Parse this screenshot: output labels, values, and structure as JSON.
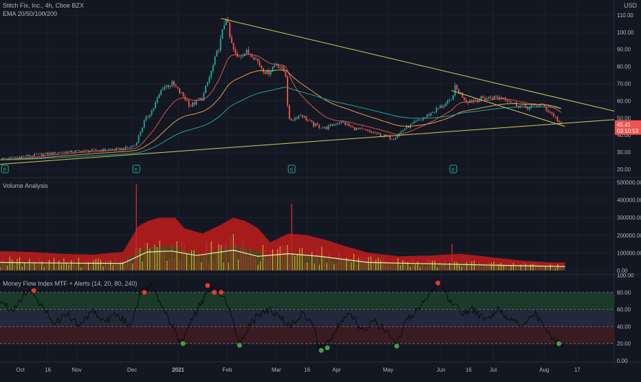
{
  "header": {
    "symbol_line": "Stitch Fix, Inc., 4h, Cboe BZX",
    "ema_label": "EMA 20/50/100/200",
    "currency": "USD"
  },
  "colors": {
    "background": "#131722",
    "grid": "#1e222d",
    "up_candle": "#26a69a",
    "down_candle": "#ef5350",
    "ema20": "#e0534a",
    "ema50": "#e8a04a",
    "ema100": "#26a69a",
    "trendline": "#d4cf5a",
    "volume_fill": "#b71c1c",
    "volume_ma": "#f0f0c0",
    "mfi_line": "#0a0a0a",
    "mfi_overbought_zone": "#1b3a2a",
    "mfi_oversold_zone": "#3a1b22",
    "mfi_middle_zone": "#23283a",
    "alert_high": "#e53935",
    "alert_low": "#43a047",
    "earnings_marker": "#26a69a"
  },
  "chart_data": [
    {
      "type": "candlestick",
      "title": "Stitch Fix, Inc., 4h, Cboe BZX",
      "indicators": [
        "EMA 20",
        "EMA 50",
        "EMA 100",
        "EMA 200"
      ],
      "x_ticks": [
        "Oct",
        "16",
        "Nov",
        "Dec",
        "2021",
        "Feb",
        "Mar",
        "16",
        "Apr",
        "May",
        "Jun",
        "16",
        "Jul",
        "Aug",
        "17"
      ],
      "y_ticks": [
        20,
        30,
        40,
        50,
        60,
        70,
        80,
        90,
        100,
        110
      ],
      "ylim": [
        16,
        118
      ],
      "last_price": "45.41",
      "countdown": "03:10:53",
      "price_path": [
        [
          0,
          26
        ],
        [
          0.05,
          28
        ],
        [
          0.1,
          30
        ],
        [
          0.15,
          31
        ],
        [
          0.2,
          32
        ],
        [
          0.22,
          34
        ],
        [
          0.235,
          48
        ],
        [
          0.25,
          56
        ],
        [
          0.265,
          68
        ],
        [
          0.28,
          70
        ],
        [
          0.3,
          62
        ],
        [
          0.31,
          57
        ],
        [
          0.33,
          62
        ],
        [
          0.345,
          78
        ],
        [
          0.36,
          96
        ],
        [
          0.368,
          110
        ],
        [
          0.375,
          95
        ],
        [
          0.385,
          85
        ],
        [
          0.395,
          88
        ],
        [
          0.41,
          88
        ],
        [
          0.425,
          80
        ],
        [
          0.435,
          76
        ],
        [
          0.45,
          82
        ],
        [
          0.465,
          76
        ],
        [
          0.47,
          48
        ],
        [
          0.49,
          52
        ],
        [
          0.51,
          46
        ],
        [
          0.53,
          44
        ],
        [
          0.555,
          48
        ],
        [
          0.575,
          44
        ],
        [
          0.6,
          42
        ],
        [
          0.62,
          40
        ],
        [
          0.64,
          38
        ],
        [
          0.66,
          44
        ],
        [
          0.69,
          50
        ],
        [
          0.715,
          56
        ],
        [
          0.735,
          60
        ],
        [
          0.74,
          68
        ],
        [
          0.76,
          60
        ],
        [
          0.78,
          61
        ],
        [
          0.8,
          62
        ],
        [
          0.82,
          62
        ],
        [
          0.84,
          58
        ],
        [
          0.86,
          56
        ],
        [
          0.88,
          58
        ],
        [
          0.9,
          52
        ],
        [
          0.915,
          45.4
        ]
      ],
      "trendlines": [
        {
          "from": [
            0.0,
            23
          ],
          "to": [
            1.0,
            49
          ]
        },
        {
          "from": [
            0.36,
            108
          ],
          "to": [
            1.0,
            54
          ]
        },
        {
          "from": [
            0.735,
            66
          ],
          "to": [
            0.92,
            45
          ]
        }
      ],
      "earnings_marks": [
        {
          "x": 0.008,
          "label": "E"
        },
        {
          "x": 0.222,
          "label": "E"
        },
        {
          "x": 0.475,
          "label": "E"
        },
        {
          "x": 0.738,
          "label": "E"
        }
      ]
    },
    {
      "type": "area",
      "title": "Volume Analysis",
      "y_ticks": [
        0,
        100000,
        200000,
        300000,
        400000,
        500000
      ],
      "y_tick_labels": [
        "0.00",
        "100000.00",
        "200000.00",
        "300000.00",
        "400000.00",
        "500000.00"
      ],
      "ylim": [
        -20000,
        520000
      ],
      "band": [
        [
          0,
          110000
        ],
        [
          0.05,
          105000
        ],
        [
          0.1,
          95000
        ],
        [
          0.15,
          90000
        ],
        [
          0.2,
          105000
        ],
        [
          0.225,
          250000
        ],
        [
          0.24,
          280000
        ],
        [
          0.26,
          300000
        ],
        [
          0.285,
          300000
        ],
        [
          0.3,
          240000
        ],
        [
          0.33,
          210000
        ],
        [
          0.36,
          260000
        ],
        [
          0.38,
          300000
        ],
        [
          0.4,
          280000
        ],
        [
          0.42,
          240000
        ],
        [
          0.44,
          160000
        ],
        [
          0.47,
          210000
        ],
        [
          0.5,
          200000
        ],
        [
          0.53,
          175000
        ],
        [
          0.56,
          140000
        ],
        [
          0.6,
          100000
        ],
        [
          0.65,
          80000
        ],
        [
          0.7,
          85000
        ],
        [
          0.75,
          95000
        ],
        [
          0.8,
          75000
        ],
        [
          0.85,
          55000
        ],
        [
          0.9,
          45000
        ],
        [
          0.92,
          45000
        ]
      ],
      "moving_average": [
        [
          0,
          45000
        ],
        [
          0.1,
          42000
        ],
        [
          0.2,
          40000
        ],
        [
          0.24,
          105000
        ],
        [
          0.28,
          110000
        ],
        [
          0.32,
          85000
        ],
        [
          0.38,
          115000
        ],
        [
          0.42,
          80000
        ],
        [
          0.47,
          95000
        ],
        [
          0.52,
          80000
        ],
        [
          0.6,
          45000
        ],
        [
          0.7,
          38000
        ],
        [
          0.8,
          30000
        ],
        [
          0.92,
          22000
        ]
      ],
      "spikes": [
        {
          "x": 0.222,
          "value": 490000
        },
        {
          "x": 0.475,
          "value": 380000
        },
        {
          "x": 0.736,
          "value": 150000
        }
      ]
    },
    {
      "type": "line",
      "title": "Money Flow Index MTF + Alerts (14, 20, 80, 240)",
      "y_ticks": [
        0,
        20,
        40,
        60,
        80,
        100
      ],
      "y_tick_labels": [
        "0.00",
        "20.00",
        "40.00",
        "60.00",
        "80.00",
        "100.00"
      ],
      "ylim": [
        0,
        100
      ],
      "levels": [
        20,
        40,
        60,
        80
      ],
      "mfi_path": [
        [
          0,
          70
        ],
        [
          0.02,
          60
        ],
        [
          0.04,
          78
        ],
        [
          0.055,
          82
        ],
        [
          0.07,
          60
        ],
        [
          0.09,
          45
        ],
        [
          0.11,
          55
        ],
        [
          0.13,
          40
        ],
        [
          0.15,
          60
        ],
        [
          0.17,
          45
        ],
        [
          0.19,
          55
        ],
        [
          0.21,
          40
        ],
        [
          0.23,
          80
        ],
        [
          0.25,
          88
        ],
        [
          0.26,
          70
        ],
        [
          0.28,
          40
        ],
        [
          0.295,
          20
        ],
        [
          0.31,
          45
        ],
        [
          0.33,
          70
        ],
        [
          0.345,
          88
        ],
        [
          0.36,
          80
        ],
        [
          0.375,
          60
        ],
        [
          0.39,
          20
        ],
        [
          0.41,
          45
        ],
        [
          0.43,
          60
        ],
        [
          0.45,
          55
        ],
        [
          0.47,
          40
        ],
        [
          0.49,
          55
        ],
        [
          0.51,
          40
        ],
        [
          0.52,
          14
        ],
        [
          0.53,
          18
        ],
        [
          0.55,
          40
        ],
        [
          0.57,
          55
        ],
        [
          0.59,
          35
        ],
        [
          0.61,
          45
        ],
        [
          0.63,
          35
        ],
        [
          0.645,
          18
        ],
        [
          0.66,
          45
        ],
        [
          0.68,
          60
        ],
        [
          0.7,
          80
        ],
        [
          0.715,
          92
        ],
        [
          0.73,
          75
        ],
        [
          0.75,
          55
        ],
        [
          0.77,
          60
        ],
        [
          0.79,
          45
        ],
        [
          0.81,
          60
        ],
        [
          0.83,
          50
        ],
        [
          0.85,
          40
        ],
        [
          0.87,
          55
        ],
        [
          0.89,
          35
        ],
        [
          0.905,
          20
        ],
        [
          0.92,
          18
        ]
      ],
      "alerts_high": [
        {
          "x": 0.055,
          "value": 82
        },
        {
          "x": 0.235,
          "value": 80
        },
        {
          "x": 0.338,
          "value": 88
        },
        {
          "x": 0.349,
          "value": 80
        },
        {
          "x": 0.36,
          "value": 80
        },
        {
          "x": 0.713,
          "value": 91
        }
      ],
      "alerts_low": [
        {
          "x": 0.298,
          "value": 20
        },
        {
          "x": 0.39,
          "value": 18
        },
        {
          "x": 0.523,
          "value": 12
        },
        {
          "x": 0.533,
          "value": 15
        },
        {
          "x": 0.646,
          "value": 17
        },
        {
          "x": 0.91,
          "value": 20
        }
      ]
    }
  ]
}
